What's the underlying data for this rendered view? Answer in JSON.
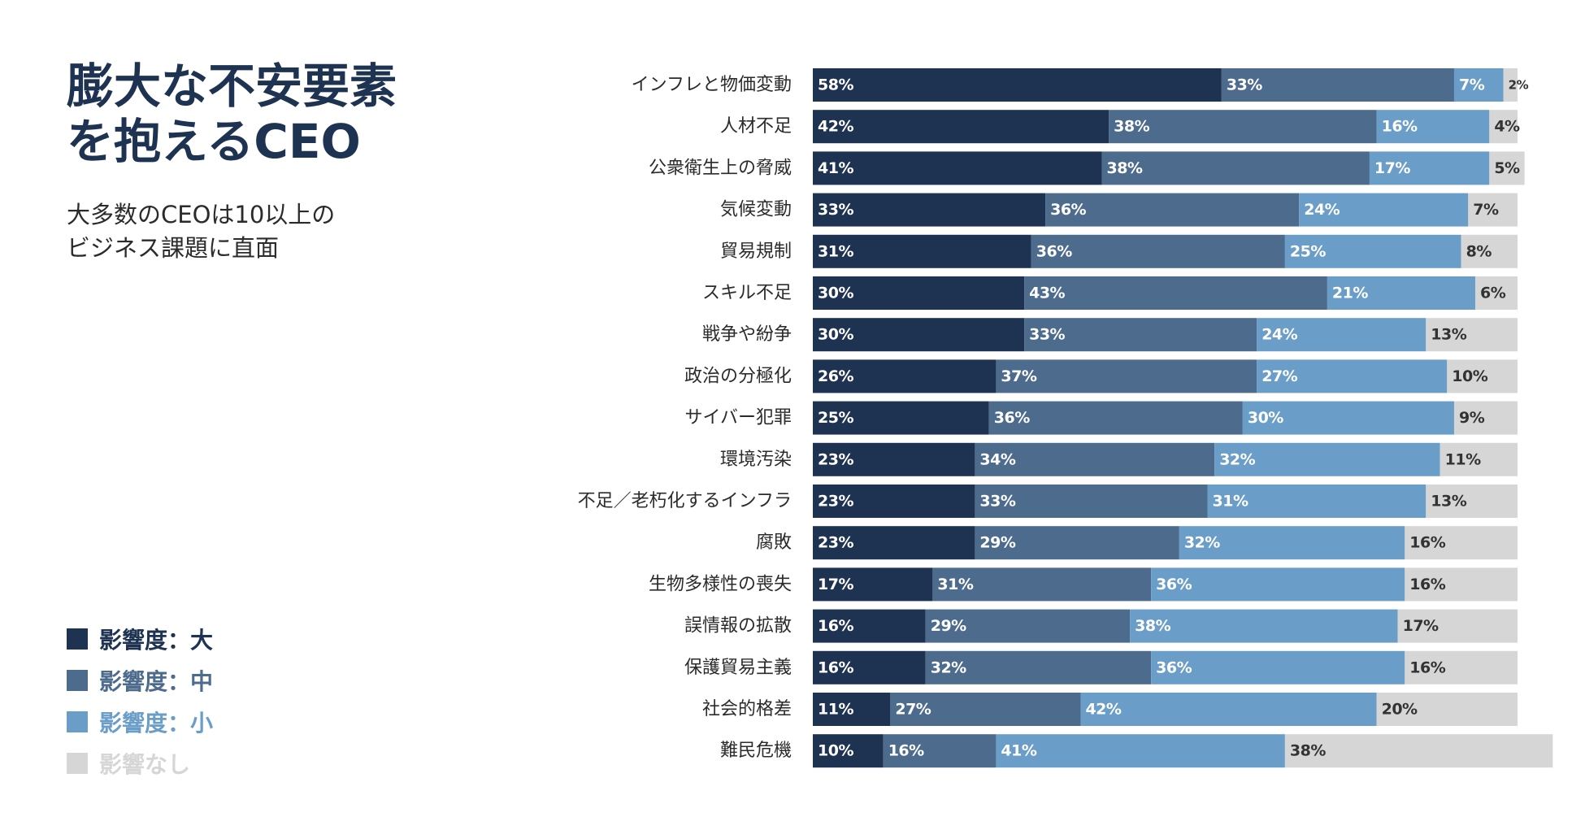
{
  "title": {
    "line1": "膨大な不安要素",
    "line2": "を抱えるCEO"
  },
  "subtitle": {
    "line1": "大多数のCEOは10以上の",
    "line2": "ビジネス課題に直面"
  },
  "legend": [
    {
      "label": "影響度：大",
      "color": "#1e3252"
    },
    {
      "label": "影響度：中",
      "color": "#4d6b8d"
    },
    {
      "label": "影響度：小",
      "color": "#6a9dc8"
    },
    {
      "label": "影響なし",
      "color": "#d6d6d6"
    }
  ],
  "chart_data": {
    "type": "bar",
    "orientation": "horizontal",
    "stacked": true,
    "unit": "%",
    "categories": [
      "インフレと物価変動",
      "人材不足",
      "公衆衛生上の脅威",
      "気候変動",
      "貿易規制",
      "スキル不足",
      "戦争や紛争",
      "政治の分極化",
      "サイバー犯罪",
      "環境汚染",
      "不足／老朽化するインフラ",
      "腐敗",
      "生物多様性の喪失",
      "誤情報の拡散",
      "保護貿易主義",
      "社会的格差",
      "難民危機"
    ],
    "series": [
      {
        "name": "影響度：大",
        "color": "#1e3252",
        "label_color": "#ffffff",
        "values": [
          58,
          42,
          41,
          33,
          31,
          30,
          30,
          26,
          25,
          23,
          23,
          23,
          17,
          16,
          16,
          11,
          10
        ]
      },
      {
        "name": "影響度：中",
        "color": "#4d6b8d",
        "label_color": "#ffffff",
        "values": [
          33,
          38,
          38,
          36,
          36,
          43,
          33,
          37,
          36,
          34,
          33,
          29,
          31,
          29,
          32,
          27,
          16
        ]
      },
      {
        "name": "影響度：小",
        "color": "#6a9dc8",
        "label_color": "#ffffff",
        "values": [
          7,
          16,
          17,
          24,
          25,
          21,
          24,
          27,
          30,
          32,
          31,
          32,
          36,
          38,
          36,
          42,
          41
        ]
      },
      {
        "name": "影響なし",
        "color": "#d6d6d6",
        "label_color": "#333333",
        "values": [
          2,
          4,
          5,
          7,
          8,
          6,
          13,
          10,
          9,
          11,
          13,
          16,
          16,
          17,
          16,
          20,
          38
        ]
      }
    ]
  }
}
